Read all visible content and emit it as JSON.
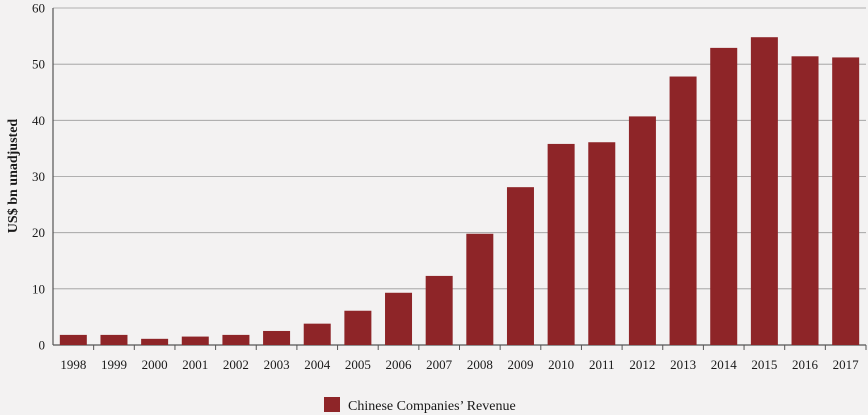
{
  "chart_data": {
    "type": "bar",
    "categories": [
      "1998",
      "1999",
      "2000",
      "2001",
      "2002",
      "2003",
      "2004",
      "2005",
      "2006",
      "2007",
      "2008",
      "2009",
      "2010",
      "2011",
      "2012",
      "2013",
      "2014",
      "2015",
      "2016",
      "2017"
    ],
    "series": [
      {
        "name": "Chinese Companies’ Revenue",
        "values": [
          1.8,
          1.8,
          1.1,
          1.5,
          1.8,
          2.5,
          3.8,
          6.1,
          9.3,
          12.3,
          19.8,
          28.1,
          35.8,
          36.1,
          40.7,
          47.8,
          52.9,
          54.8,
          51.4,
          51.2
        ],
        "color": "#8e2528"
      }
    ],
    "title": "",
    "xlabel": "",
    "ylabel": "US$ bn unadjusted",
    "ylim": [
      0,
      60
    ],
    "yticks": [
      0,
      10,
      20,
      30,
      40,
      50,
      60
    ],
    "grid": true,
    "legend_position": "bottom-center"
  }
}
